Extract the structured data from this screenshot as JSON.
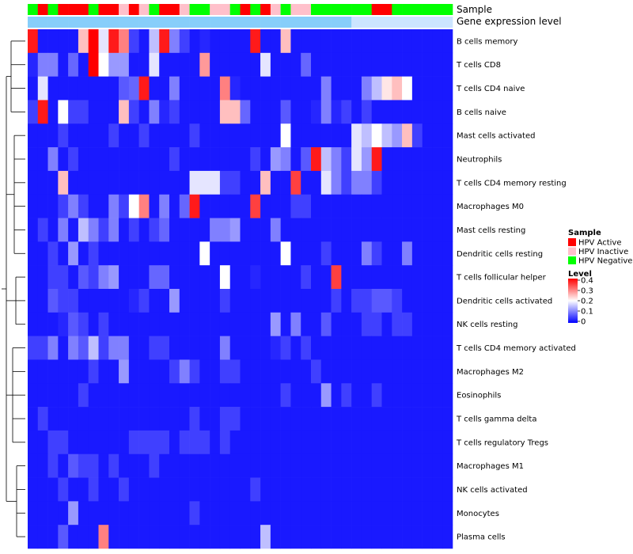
{
  "chart_data": {
    "type": "heatmap",
    "title": "",
    "annotation_tracks": [
      "Sample",
      "Gene expression level"
    ],
    "sample_group_codes": "NANAAANAAIAINAAINNIINANAINIINNNNNNAANNNNNN",
    "sample_groups": {
      "A": "HPV Active",
      "I": "HPV Inactive",
      "N": "HPV Negative"
    },
    "expression_level_codes": "DDDDDDDDDDDDDDDDDDDDDDDDDDDDDDDDLLLLLLLLLL",
    "expression_levels": {
      "D": "darker",
      "L": "lighter"
    },
    "rows": [
      "B cells memory",
      "T cells CD8",
      "T cells CD4 naive",
      "B cells naive",
      "Mast cells activated",
      "Neutrophils",
      "T cells CD4 memory resting",
      "Macrophages M0",
      "Mast cells resting",
      "Dendritic cells resting",
      "T cells follicular helper",
      "Dendritic cells activated",
      "NK cells resting",
      "T cells CD4 memory activated",
      "Macrophages M2",
      "Eosinophils",
      "T cells gamma delta",
      "T cells regulatory  Tregs",
      "Macrophages M1",
      "NK cells activated",
      "Monocytes",
      "Plasma cells"
    ],
    "values": [
      [
        0.38,
        0.02,
        0.02,
        0.02,
        0.02,
        0.25,
        0.4,
        0.18,
        0.38,
        0.3,
        0.05,
        0.02,
        0.15,
        0.38,
        0.1,
        0.05,
        0.02,
        0.03,
        0.02,
        0.02,
        0.02,
        0.02,
        0.38,
        0.02,
        0.02,
        0.25,
        0.02,
        0.02,
        0.02,
        0.02,
        0.02,
        0.02,
        0.02,
        0.02,
        0.02,
        0.02,
        0.02,
        0.02,
        0.02,
        0.02,
        0.02,
        0.02
      ],
      [
        0.03,
        0.1,
        0.1,
        0.02,
        0.08,
        0.02,
        0.4,
        0.2,
        0.12,
        0.12,
        0.02,
        0.02,
        0.18,
        0.02,
        0.02,
        0.02,
        0.02,
        0.28,
        0.02,
        0.02,
        0.02,
        0.02,
        0.02,
        0.18,
        0.02,
        0.02,
        0.02,
        0.08,
        0.02,
        0.02,
        0.02,
        0.02,
        0.02,
        0.02,
        0.02,
        0.02,
        0.02,
        0.02,
        0.02,
        0.02,
        0.02,
        0.02
      ],
      [
        0.02,
        0.18,
        0.02,
        0.02,
        0.02,
        0.02,
        0.02,
        0.02,
        0.02,
        0.07,
        0.08,
        0.38,
        0.02,
        0.02,
        0.1,
        0.02,
        0.02,
        0.02,
        0.02,
        0.3,
        0.03,
        0.02,
        0.02,
        0.02,
        0.02,
        0.02,
        0.02,
        0.02,
        0.02,
        0.1,
        0.02,
        0.02,
        0.02,
        0.1,
        0.15,
        0.22,
        0.25,
        0.2,
        0.02,
        0.02,
        0.02,
        0.02
      ],
      [
        0.05,
        0.38,
        0.02,
        0.2,
        0.05,
        0.05,
        0.02,
        0.02,
        0.02,
        0.25,
        0.05,
        0.02,
        0.1,
        0.03,
        0.05,
        0.02,
        0.02,
        0.02,
        0.02,
        0.25,
        0.25,
        0.08,
        0.02,
        0.02,
        0.02,
        0.07,
        0.02,
        0.02,
        0.03,
        0.1,
        0.03,
        0.05,
        0.02,
        0.05,
        0.02,
        0.02,
        0.02,
        0.02,
        0.02,
        0.02,
        0.02,
        0.02
      ],
      [
        0.02,
        0.02,
        0.02,
        0.05,
        0.02,
        0.02,
        0.02,
        0.02,
        0.05,
        0.02,
        0.02,
        0.05,
        0.02,
        0.02,
        0.02,
        0.02,
        0.05,
        0.02,
        0.02,
        0.02,
        0.02,
        0.02,
        0.02,
        0.02,
        0.02,
        0.2,
        0.02,
        0.02,
        0.02,
        0.02,
        0.02,
        0.02,
        0.18,
        0.15,
        0.2,
        0.15,
        0.12,
        0.25,
        0.05,
        0.02,
        0.02,
        0.02
      ],
      [
        0.02,
        0.02,
        0.1,
        0.02,
        0.05,
        0.02,
        0.02,
        0.02,
        0.02,
        0.02,
        0.02,
        0.02,
        0.02,
        0.02,
        0.05,
        0.02,
        0.02,
        0.02,
        0.02,
        0.02,
        0.02,
        0.02,
        0.05,
        0.02,
        0.12,
        0.1,
        0.02,
        0.07,
        0.38,
        0.15,
        0.1,
        0.05,
        0.18,
        0.12,
        0.38,
        0.02,
        0.02,
        0.02,
        0.02,
        0.02,
        0.02,
        0.02
      ],
      [
        0.02,
        0.02,
        0.02,
        0.25,
        0.02,
        0.02,
        0.02,
        0.02,
        0.02,
        0.02,
        0.02,
        0.02,
        0.02,
        0.02,
        0.02,
        0.02,
        0.18,
        0.18,
        0.18,
        0.05,
        0.05,
        0.02,
        0.02,
        0.25,
        0.02,
        0.02,
        0.35,
        0.02,
        0.02,
        0.18,
        0.1,
        0.05,
        0.1,
        0.1,
        0.05,
        0.02,
        0.02,
        0.02,
        0.02,
        0.02,
        0.02,
        0.02
      ],
      [
        0.02,
        0.02,
        0.02,
        0.05,
        0.1,
        0.05,
        0.02,
        0.02,
        0.1,
        0.05,
        0.2,
        0.3,
        0.02,
        0.1,
        0.02,
        0.08,
        0.38,
        0.02,
        0.02,
        0.02,
        0.02,
        0.02,
        0.35,
        0.02,
        0.02,
        0.02,
        0.05,
        0.05,
        0.02,
        0.02,
        0.02,
        0.02,
        0.02,
        0.02,
        0.02,
        0.02,
        0.02,
        0.02,
        0.02,
        0.02,
        0.02,
        0.02
      ],
      [
        0.02,
        0.05,
        0.02,
        0.1,
        0.02,
        0.15,
        0.1,
        0.05,
        0.1,
        0.02,
        0.05,
        0.02,
        0.05,
        0.08,
        0.02,
        0.02,
        0.02,
        0.02,
        0.1,
        0.1,
        0.12,
        0.02,
        0.02,
        0.02,
        0.1,
        0.02,
        0.02,
        0.02,
        0.02,
        0.02,
        0.02,
        0.02,
        0.02,
        0.02,
        0.02,
        0.02,
        0.02,
        0.02,
        0.02,
        0.02,
        0.02,
        0.02
      ],
      [
        0.02,
        0.02,
        0.05,
        0.02,
        0.12,
        0.02,
        0.05,
        0.02,
        0.02,
        0.02,
        0.02,
        0.02,
        0.02,
        0.02,
        0.02,
        0.02,
        0.02,
        0.2,
        0.02,
        0.02,
        0.02,
        0.02,
        0.02,
        0.02,
        0.02,
        0.2,
        0.02,
        0.02,
        0.02,
        0.05,
        0.02,
        0.02,
        0.02,
        0.1,
        0.05,
        0.02,
        0.02,
        0.1,
        0.02,
        0.02,
        0.02,
        0.02
      ],
      [
        0.02,
        0.02,
        0.05,
        0.05,
        0.02,
        0.07,
        0.05,
        0.1,
        0.12,
        0.02,
        0.02,
        0.02,
        0.08,
        0.08,
        0.02,
        0.02,
        0.02,
        0.02,
        0.02,
        0.2,
        0.02,
        0.02,
        0.03,
        0.02,
        0.02,
        0.02,
        0.02,
        0.05,
        0.02,
        0.02,
        0.35,
        0.02,
        0.02,
        0.02,
        0.02,
        0.02,
        0.02,
        0.02,
        0.02,
        0.02,
        0.02,
        0.02
      ],
      [
        0.02,
        0.02,
        0.07,
        0.05,
        0.05,
        0.02,
        0.02,
        0.02,
        0.02,
        0.02,
        0.03,
        0.05,
        0.02,
        0.02,
        0.12,
        0.02,
        0.02,
        0.02,
        0.02,
        0.05,
        0.02,
        0.02,
        0.02,
        0.02,
        0.02,
        0.02,
        0.02,
        0.02,
        0.02,
        0.02,
        0.05,
        0.02,
        0.05,
        0.05,
        0.07,
        0.07,
        0.05,
        0.02,
        0.02,
        0.02,
        0.02,
        0.02
      ],
      [
        0.02,
        0.02,
        0.02,
        0.03,
        0.07,
        0.05,
        0.02,
        0.05,
        0.02,
        0.02,
        0.02,
        0.02,
        0.02,
        0.02,
        0.02,
        0.02,
        0.02,
        0.02,
        0.02,
        0.02,
        0.02,
        0.02,
        0.02,
        0.02,
        0.12,
        0.02,
        0.1,
        0.02,
        0.02,
        0.07,
        0.02,
        0.02,
        0.02,
        0.05,
        0.05,
        0.02,
        0.05,
        0.05,
        0.02,
        0.02,
        0.02,
        0.02
      ],
      [
        0.05,
        0.05,
        0.1,
        0.02,
        0.1,
        0.07,
        0.15,
        0.05,
        0.1,
        0.1,
        0.02,
        0.02,
        0.05,
        0.05,
        0.02,
        0.02,
        0.02,
        0.02,
        0.02,
        0.1,
        0.02,
        0.02,
        0.02,
        0.02,
        0.03,
        0.05,
        0.02,
        0.05,
        0.02,
        0.02,
        0.02,
        0.02,
        0.02,
        0.02,
        0.02,
        0.02,
        0.02,
        0.02,
        0.02,
        0.02,
        0.02,
        0.02
      ],
      [
        0.02,
        0.02,
        0.02,
        0.02,
        0.02,
        0.02,
        0.05,
        0.02,
        0.02,
        0.12,
        0.02,
        0.02,
        0.02,
        0.02,
        0.05,
        0.1,
        0.05,
        0.02,
        0.02,
        0.05,
        0.05,
        0.02,
        0.02,
        0.02,
        0.02,
        0.02,
        0.02,
        0.02,
        0.05,
        0.02,
        0.02,
        0.02,
        0.02,
        0.02,
        0.02,
        0.02,
        0.02,
        0.02,
        0.02,
        0.02,
        0.02,
        0.02
      ],
      [
        0.02,
        0.02,
        0.02,
        0.02,
        0.02,
        0.05,
        0.02,
        0.02,
        0.02,
        0.02,
        0.02,
        0.02,
        0.02,
        0.02,
        0.02,
        0.02,
        0.02,
        0.02,
        0.02,
        0.02,
        0.02,
        0.02,
        0.02,
        0.02,
        0.02,
        0.05,
        0.02,
        0.02,
        0.02,
        0.12,
        0.02,
        0.05,
        0.02,
        0.02,
        0.05,
        0.02,
        0.02,
        0.02,
        0.02,
        0.02,
        0.02,
        0.02
      ],
      [
        0.02,
        0.05,
        0.02,
        0.02,
        0.02,
        0.02,
        0.02,
        0.02,
        0.02,
        0.02,
        0.02,
        0.02,
        0.02,
        0.02,
        0.02,
        0.02,
        0.05,
        0.02,
        0.02,
        0.05,
        0.05,
        0.02,
        0.02,
        0.02,
        0.02,
        0.02,
        0.02,
        0.02,
        0.02,
        0.02,
        0.02,
        0.02,
        0.02,
        0.02,
        0.02,
        0.02,
        0.02,
        0.02,
        0.02,
        0.02,
        0.02,
        0.02
      ],
      [
        0.02,
        0.02,
        0.05,
        0.05,
        0.02,
        0.02,
        0.02,
        0.02,
        0.02,
        0.02,
        0.05,
        0.05,
        0.05,
        0.05,
        0.02,
        0.05,
        0.05,
        0.05,
        0.02,
        0.05,
        0.02,
        0.02,
        0.02,
        0.02,
        0.02,
        0.02,
        0.02,
        0.02,
        0.02,
        0.02,
        0.02,
        0.02,
        0.02,
        0.02,
        0.02,
        0.02,
        0.02,
        0.02,
        0.02,
        0.02,
        0.02,
        0.02
      ],
      [
        0.02,
        0.02,
        0.05,
        0.02,
        0.07,
        0.05,
        0.05,
        0.02,
        0.05,
        0.02,
        0.02,
        0.02,
        0.05,
        0.02,
        0.02,
        0.02,
        0.02,
        0.02,
        0.02,
        0.02,
        0.02,
        0.02,
        0.02,
        0.02,
        0.02,
        0.02,
        0.02,
        0.02,
        0.02,
        0.02,
        0.02,
        0.02,
        0.02,
        0.02,
        0.02,
        0.02,
        0.02,
        0.02,
        0.02,
        0.02,
        0.02,
        0.02
      ],
      [
        0.02,
        0.02,
        0.02,
        0.05,
        0.02,
        0.02,
        0.05,
        0.02,
        0.02,
        0.05,
        0.02,
        0.02,
        0.02,
        0.02,
        0.02,
        0.02,
        0.02,
        0.02,
        0.02,
        0.02,
        0.02,
        0.02,
        0.05,
        0.02,
        0.02,
        0.02,
        0.02,
        0.02,
        0.02,
        0.02,
        0.02,
        0.02,
        0.02,
        0.02,
        0.02,
        0.02,
        0.02,
        0.02,
        0.02,
        0.02,
        0.02,
        0.02
      ],
      [
        0.02,
        0.02,
        0.02,
        0.02,
        0.12,
        0.02,
        0.02,
        0.02,
        0.02,
        0.02,
        0.02,
        0.02,
        0.02,
        0.02,
        0.02,
        0.02,
        0.05,
        0.02,
        0.02,
        0.02,
        0.02,
        0.02,
        0.02,
        0.02,
        0.02,
        0.02,
        0.02,
        0.02,
        0.02,
        0.02,
        0.02,
        0.02,
        0.02,
        0.02,
        0.02,
        0.02,
        0.02,
        0.02,
        0.02,
        0.02,
        0.02,
        0.02
      ],
      [
        0.02,
        0.02,
        0.02,
        0.07,
        0.02,
        0.02,
        0.02,
        0.3,
        0.02,
        0.02,
        0.02,
        0.02,
        0.02,
        0.02,
        0.02,
        0.02,
        0.02,
        0.02,
        0.02,
        0.02,
        0.02,
        0.02,
        0.02,
        0.15,
        0.02,
        0.02,
        0.02,
        0.02,
        0.02,
        0.02,
        0.02,
        0.02,
        0.02,
        0.02,
        0.02,
        0.02,
        0.02,
        0.02,
        0.02,
        0.02,
        0.02,
        0.02
      ]
    ],
    "scale": {
      "min": 0,
      "mid": 0.2,
      "max": 0.4,
      "low_color": "#0000FF",
      "mid_color": "#FFFFFF",
      "high_color": "#FF0000"
    },
    "legend": {
      "sample_title": "Sample",
      "sample_entries": [
        {
          "label": "HPV Active",
          "color": "#FF0000"
        },
        {
          "label": "HPV Inactive",
          "color": "#FFC0CB"
        },
        {
          "label": "HPV Negative",
          "color": "#00FF00"
        }
      ],
      "level_title": "Level",
      "level_ticks": [
        "0.4",
        "0.3",
        "0.2",
        "0.1",
        "0"
      ],
      "position": "right"
    },
    "expression_colors": {
      "darker": "#87CEFA",
      "lighter": "#CCE5FF"
    }
  }
}
